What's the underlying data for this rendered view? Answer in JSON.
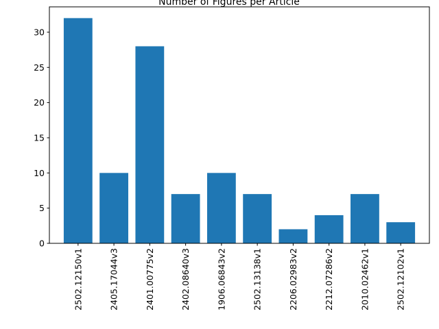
{
  "chart_data": {
    "type": "bar",
    "title": "Number of Figures per Article",
    "xlabel": "",
    "ylabel": "",
    "categories": [
      "2502.12150v1",
      "2405.17044v3",
      "2401.00775v2",
      "2402.08640v3",
      "1906.06843v2",
      "2502.13138v1",
      "2206.02983v2",
      "2212.07286v2",
      "2010.02462v1",
      "2502.12102v1"
    ],
    "values": [
      32,
      10,
      28,
      7,
      10,
      7,
      2,
      4,
      7,
      3
    ],
    "ylim": [
      0,
      33.6
    ],
    "yticks": [
      0,
      5,
      10,
      15,
      20,
      25,
      30
    ],
    "grid": false,
    "bar_color": "#1f77b4"
  }
}
